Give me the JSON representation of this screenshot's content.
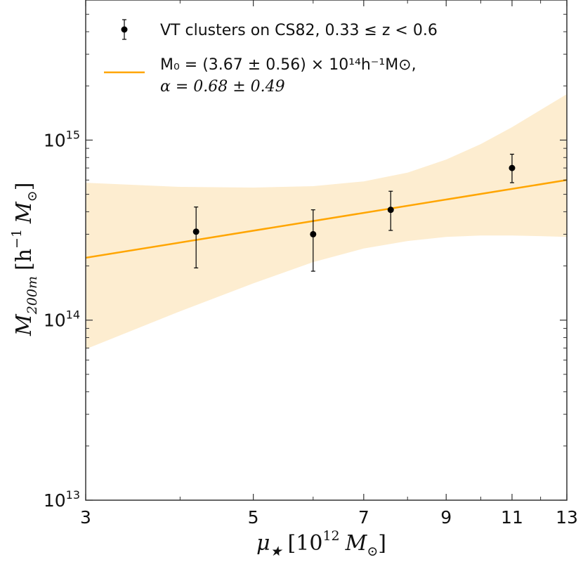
{
  "chart_data": {
    "type": "scatter",
    "scale": {
      "x": "log",
      "y": "log"
    },
    "xlim": [
      3,
      13
    ],
    "ylim": [
      10000000000000.0,
      6000000000000000.0
    ],
    "xticks": [
      3,
      5,
      7,
      9,
      11,
      13
    ],
    "xtick_labels": [
      "3",
      "5",
      "7",
      "9",
      "11",
      "13"
    ],
    "yticks": [
      10000000000000.0,
      100000000000000.0,
      1000000000000000.0
    ],
    "ytick_labels": [
      {
        "base": "10",
        "exp": "13"
      },
      {
        "base": "10",
        "exp": "14"
      },
      {
        "base": "10",
        "exp": "15"
      }
    ],
    "xlabel": {
      "sym": "μ",
      "sub": "★",
      "bracket_open": "[10",
      "exp": "12",
      "unit": "M",
      "unit_sub": "⊙",
      "bracket_close": "]"
    },
    "ylabel": {
      "sym": "M",
      "sub": "200m",
      "bracket_open": "[h",
      "exp": "−1",
      "unit": "M",
      "unit_sub": "⊙",
      "bracket_close": "]"
    },
    "grid": false,
    "legend": {
      "placement": "top-left",
      "points": "VT clusters on CS82,  0.33 ≤ z < 0.6",
      "fit_line1": "M₀ = (3.67 ± 0.56) × 10¹⁴h⁻¹M⊙,",
      "fit_line2": "α = 0.68 ± 0.49"
    },
    "series": [
      {
        "type": "scatter",
        "x": [
          4.2,
          6.0,
          7.6,
          11.0
        ],
        "y": [
          310000000000000.0,
          300000000000000.0,
          410000000000000.0,
          700000000000000.0
        ],
        "yerr_low": [
          195000000000000.0,
          187000000000000.0,
          315000000000000.0,
          580000000000000.0
        ],
        "yerr_high": [
          425000000000000.0,
          410000000000000.0,
          520000000000000.0,
          835000000000000.0
        ],
        "color": "#000000"
      },
      {
        "type": "line",
        "x": [
          3,
          13
        ],
        "y": [
          222000000000000.0,
          600000000000000.0
        ],
        "color": "#FFA500"
      }
    ],
    "band": {
      "color": "#FDEBCB",
      "x": [
        3,
        4,
        5,
        6,
        7,
        8,
        9,
        10,
        11,
        12,
        13
      ],
      "upper": [
        580000000000000.0,
        550000000000000.0,
        545000000000000.0,
        555000000000000.0,
        590000000000000.0,
        660000000000000.0,
        780000000000000.0,
        950000000000000.0,
        1180000000000000.0,
        1470000000000000.0,
        1800000000000000.0
      ],
      "lower": [
        69000000000000.0,
        112000000000000.0,
        160000000000000.0,
        210000000000000.0,
        250000000000000.0,
        275000000000000.0,
        290000000000000.0,
        295000000000000.0,
        295000000000000.0,
        293000000000000.0,
        290000000000000.0
      ]
    }
  }
}
